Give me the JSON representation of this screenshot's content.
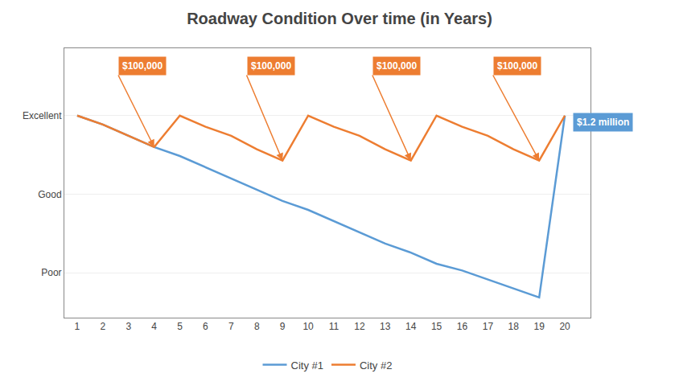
{
  "chart_data": {
    "type": "line",
    "title": "Roadway Condition Over time (in Years)",
    "series": [
      {
        "name": "City #1",
        "color": "#5B9BD5",
        "x": [
          1,
          2,
          3,
          4,
          5,
          6,
          7,
          8,
          9,
          10,
          11,
          12,
          13,
          14,
          15,
          16,
          17,
          18,
          19,
          20
        ],
        "values": [
          85,
          81,
          76,
          71,
          67,
          62,
          57,
          52,
          47,
          43,
          38,
          33,
          28,
          24,
          19,
          16,
          12,
          8,
          4,
          85
        ]
      },
      {
        "name": "City #2",
        "color": "#ED7D31",
        "x": [
          1,
          2,
          3,
          4,
          5,
          6,
          7,
          8,
          9,
          10,
          11,
          12,
          13,
          14,
          15,
          16,
          17,
          18,
          19,
          20
        ],
        "values": [
          85,
          81,
          76,
          71,
          85,
          80,
          76,
          70,
          65,
          85,
          80,
          76,
          70,
          65,
          85,
          80,
          76,
          70,
          65,
          85
        ]
      }
    ],
    "xlim": [
      0.5,
      21.0
    ],
    "xticks": [
      1,
      2,
      3,
      4,
      5,
      6,
      7,
      8,
      9,
      10,
      11,
      12,
      13,
      14,
      15,
      16,
      17,
      18,
      19,
      20
    ],
    "ylim": [
      -5,
      115
    ],
    "yticks": [
      {
        "value": 15,
        "label": "Poor"
      },
      {
        "value": 50,
        "label": "Good"
      },
      {
        "value": 85,
        "label": "Excellent"
      }
    ],
    "grid": "y",
    "legend": "bottom",
    "annotations": [
      {
        "text": "$100,000",
        "x": 4,
        "y": 71,
        "text_x": 2.6,
        "text_y": 103,
        "color": "#ED7D31",
        "arrow": true
      },
      {
        "text": "$100,000",
        "x": 9,
        "y": 65,
        "text_x": 7.6,
        "text_y": 103,
        "color": "#ED7D31",
        "arrow": true
      },
      {
        "text": "$100,000",
        "x": 14,
        "y": 65,
        "text_x": 12.5,
        "text_y": 103,
        "color": "#ED7D31",
        "arrow": true
      },
      {
        "text": "$100,000",
        "x": 19,
        "y": 65,
        "text_x": 17.2,
        "text_y": 103,
        "color": "#ED7D31",
        "arrow": true
      },
      {
        "text": "$1.2 million",
        "x": 20,
        "y": 85,
        "text_x": 20.3,
        "text_y": 82,
        "color": "#5B9BD5",
        "arrow": false
      }
    ]
  }
}
